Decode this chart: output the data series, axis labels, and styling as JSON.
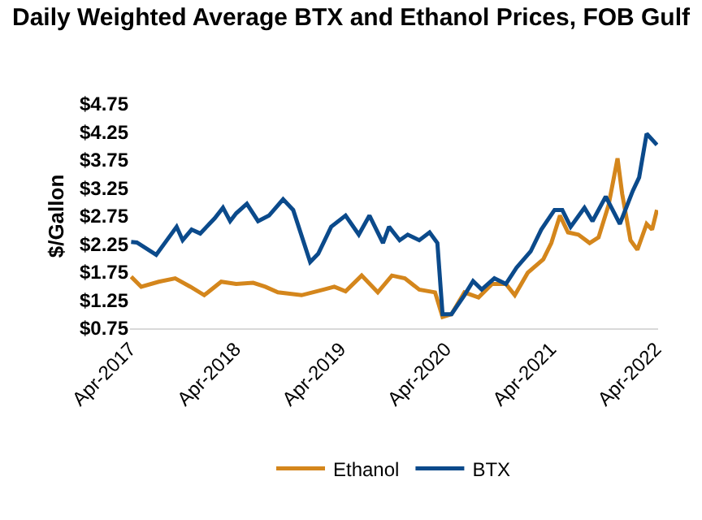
{
  "chart_data": {
    "type": "line",
    "title": "Daily Weighted Average BTX and Ethanol Prices, FOB Gulf",
    "ylabel": "$/Gallon",
    "xlim": [
      "2017-04-01",
      "2022-04-10"
    ],
    "xticks": [
      {
        "value": "2017-04-01",
        "label": "Apr-2017"
      },
      {
        "value": "2018-04-01",
        "label": "Apr-2018"
      },
      {
        "value": "2019-04-01",
        "label": "Apr-2019"
      },
      {
        "value": "2020-04-01",
        "label": "Apr-2020"
      },
      {
        "value": "2021-04-01",
        "label": "Apr-2021"
      },
      {
        "value": "2022-04-01",
        "label": "Apr-2022"
      }
    ],
    "ylim": [
      0.75,
      4.75
    ],
    "yticks": [
      {
        "value": 0.75,
        "label": "$0.75"
      },
      {
        "value": 1.25,
        "label": "$1.25"
      },
      {
        "value": 1.75,
        "label": "$1.75"
      },
      {
        "value": 2.25,
        "label": "$2.25"
      },
      {
        "value": 2.75,
        "label": "$2.75"
      },
      {
        "value": 3.25,
        "label": "$3.25"
      },
      {
        "value": 3.75,
        "label": "$3.75"
      },
      {
        "value": 4.25,
        "label": "$4.25"
      },
      {
        "value": 4.75,
        "label": "$4.75"
      }
    ],
    "grid": false,
    "legend": "bottom",
    "marker": "none",
    "line_style": "solid",
    "series": [
      {
        "name": "Ethanol",
        "color": "#d4861c",
        "x": [
          "2017-04-05",
          "2017-05-10",
          "2017-07-10",
          "2017-09-05",
          "2017-10-28",
          "2017-12-15",
          "2018-02-12",
          "2018-04-05",
          "2018-06-03",
          "2018-07-15",
          "2018-08-28",
          "2018-11-18",
          "2019-02-03",
          "2019-03-12",
          "2019-04-20",
          "2019-06-15",
          "2019-08-10",
          "2019-09-28",
          "2019-11-12",
          "2020-01-01",
          "2020-02-25",
          "2020-03-22",
          "2020-04-22",
          "2020-06-06",
          "2020-07-25",
          "2020-09-10",
          "2020-10-28",
          "2020-11-28",
          "2021-01-12",
          "2021-03-07",
          "2021-04-04",
          "2021-05-04",
          "2021-06-01",
          "2021-07-07",
          "2021-08-15",
          "2021-09-15",
          "2021-10-20",
          "2021-11-20",
          "2021-12-06",
          "2022-01-04",
          "2022-01-28",
          "2022-03-01",
          "2022-03-20",
          "2022-04-06"
        ],
        "values": [
          1.67,
          1.49,
          1.58,
          1.64,
          1.49,
          1.34,
          1.58,
          1.54,
          1.56,
          1.49,
          1.39,
          1.34,
          1.44,
          1.49,
          1.41,
          1.69,
          1.39,
          1.69,
          1.64,
          1.44,
          1.39,
          0.95,
          1.0,
          1.39,
          1.3,
          1.54,
          1.54,
          1.34,
          1.74,
          1.98,
          2.27,
          2.76,
          2.46,
          2.42,
          2.27,
          2.37,
          2.95,
          3.78,
          3.15,
          2.32,
          2.15,
          2.61,
          2.51,
          2.86
        ]
      },
      {
        "name": "BTX",
        "color": "#0b4a8b",
        "x": [
          "2017-04-05",
          "2017-04-25",
          "2017-07-01",
          "2017-09-10",
          "2017-10-01",
          "2017-11-01",
          "2017-12-01",
          "2018-01-20",
          "2018-02-18",
          "2018-03-15",
          "2018-04-05",
          "2018-05-12",
          "2018-06-20",
          "2018-07-28",
          "2018-09-15",
          "2018-10-20",
          "2018-12-18",
          "2019-01-15",
          "2019-03-01",
          "2019-04-20",
          "2019-06-05",
          "2019-07-12",
          "2019-08-28",
          "2019-09-18",
          "2019-10-25",
          "2019-11-22",
          "2020-01-01",
          "2020-02-06",
          "2020-03-04",
          "2020-03-22",
          "2020-04-22",
          "2020-06-06",
          "2020-07-06",
          "2020-08-05",
          "2020-09-18",
          "2020-10-28",
          "2020-12-04",
          "2021-01-22",
          "2021-02-28",
          "2021-04-15",
          "2021-05-12",
          "2021-06-10",
          "2021-07-28",
          "2021-08-25",
          "2021-10-10",
          "2021-11-28",
          "2022-01-12",
          "2022-02-03",
          "2022-03-01",
          "2022-04-06"
        ],
        "values": [
          2.29,
          2.28,
          2.06,
          2.56,
          2.32,
          2.51,
          2.44,
          2.71,
          2.9,
          2.66,
          2.8,
          2.97,
          2.66,
          2.76,
          3.05,
          2.86,
          1.93,
          2.08,
          2.56,
          2.76,
          2.42,
          2.76,
          2.27,
          2.56,
          2.32,
          2.42,
          2.32,
          2.46,
          2.27,
          1.0,
          1.0,
          1.34,
          1.59,
          1.44,
          1.64,
          1.54,
          1.83,
          2.12,
          2.51,
          2.86,
          2.86,
          2.56,
          2.9,
          2.66,
          3.1,
          2.61,
          3.2,
          3.44,
          4.22,
          4.02
        ]
      }
    ]
  }
}
